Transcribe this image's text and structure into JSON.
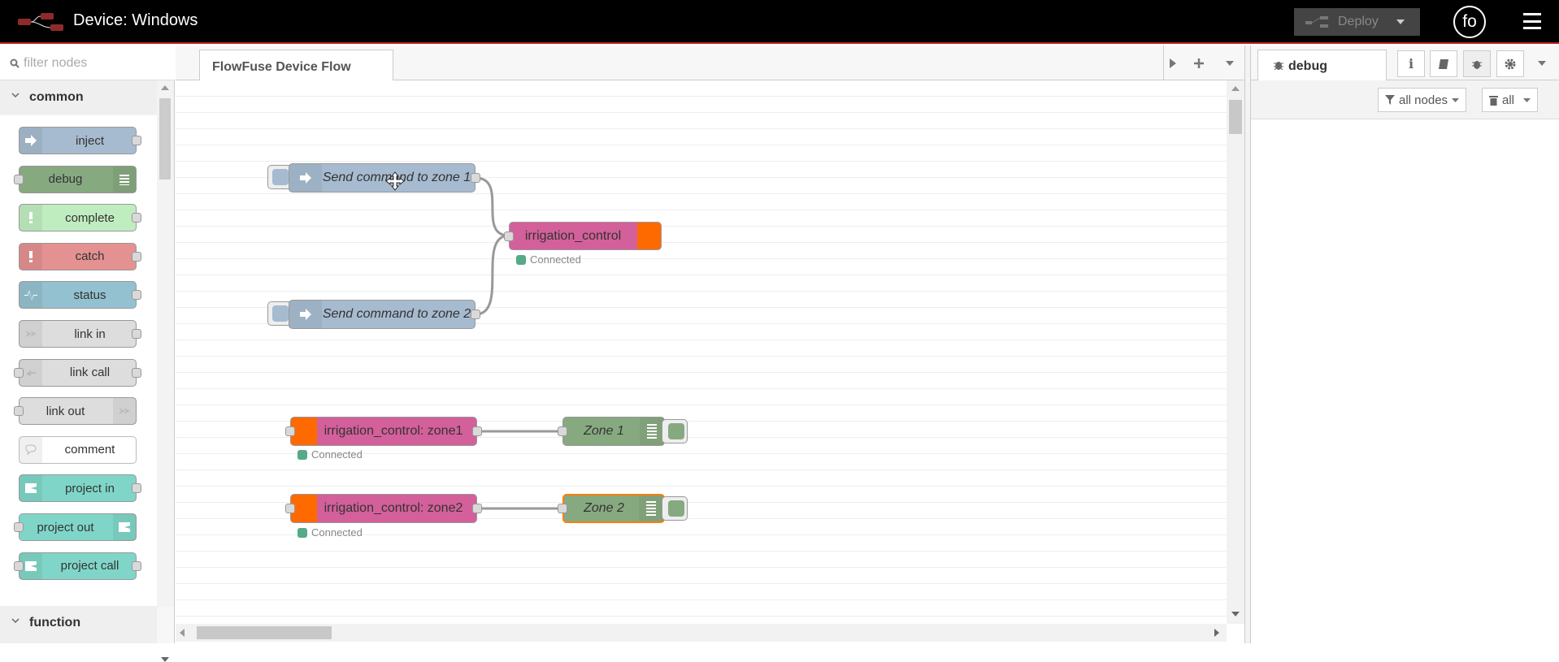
{
  "header": {
    "title": "Device: Windows",
    "deploy_label": "Deploy",
    "user_initials": "fo"
  },
  "palette": {
    "filter_placeholder": "filter nodes",
    "categories": [
      "common",
      "function"
    ],
    "items": [
      {
        "label": "inject",
        "color": "#a6bbcf",
        "in": false,
        "out": true,
        "icon": "arrow-icon",
        "icon_side": "left"
      },
      {
        "label": "debug",
        "color": "#87a980",
        "in": true,
        "out": false,
        "icon": "list-icon",
        "icon_side": "right"
      },
      {
        "label": "complete",
        "color": "#c0edc0",
        "in": false,
        "out": true,
        "icon": "exclamation-icon",
        "icon_side": "left"
      },
      {
        "label": "catch",
        "color": "#e49191",
        "in": false,
        "out": true,
        "icon": "exclamation-icon",
        "icon_side": "left"
      },
      {
        "label": "status",
        "color": "#94c1d0",
        "in": false,
        "out": true,
        "icon": "pulse-icon",
        "icon_side": "left"
      },
      {
        "label": "link in",
        "color": "#dddddd",
        "in": false,
        "out": true,
        "icon": "link-in-icon",
        "icon_side": "left"
      },
      {
        "label": "link call",
        "color": "#dddddd",
        "in": true,
        "out": true,
        "icon": "link-call-icon",
        "icon_side": "left"
      },
      {
        "label": "link out",
        "color": "#dddddd",
        "in": true,
        "out": false,
        "icon": "link-out-icon",
        "icon_side": "right"
      },
      {
        "label": "comment",
        "color": "#ffffff",
        "in": false,
        "out": false,
        "icon": "comment-icon",
        "icon_side": "left"
      },
      {
        "label": "project in",
        "color": "#7fd6c8",
        "in": false,
        "out": true,
        "icon": "project-icon",
        "icon_side": "left"
      },
      {
        "label": "project out",
        "color": "#7fd6c8",
        "in": true,
        "out": false,
        "icon": "project-icon",
        "icon_side": "right"
      },
      {
        "label": "project call",
        "color": "#7fd6c8",
        "in": true,
        "out": true,
        "icon": "project-icon",
        "icon_side": "left"
      }
    ]
  },
  "workspace": {
    "tab": "FlowFuse Device Flow"
  },
  "flow": {
    "nodes": {
      "send1": "Send command to zone 1",
      "send2": "Send command to zone 2",
      "irrigation": "irrigation_control",
      "zone1_in": "irrigation_control: zone1",
      "zone2_in": "irrigation_control: zone2",
      "debug1": "Zone 1",
      "debug2": "Zone 2"
    },
    "status_text": "Connected",
    "colors": {
      "inject": "#a6bbcf",
      "mqtt": "#d3609a",
      "mqtt_icon": "#ff6a00",
      "debug": "#87a980",
      "status": "#5a8"
    }
  },
  "sidebar_right": {
    "tab": "debug",
    "filter_label": "all nodes",
    "clear_label": "all"
  }
}
